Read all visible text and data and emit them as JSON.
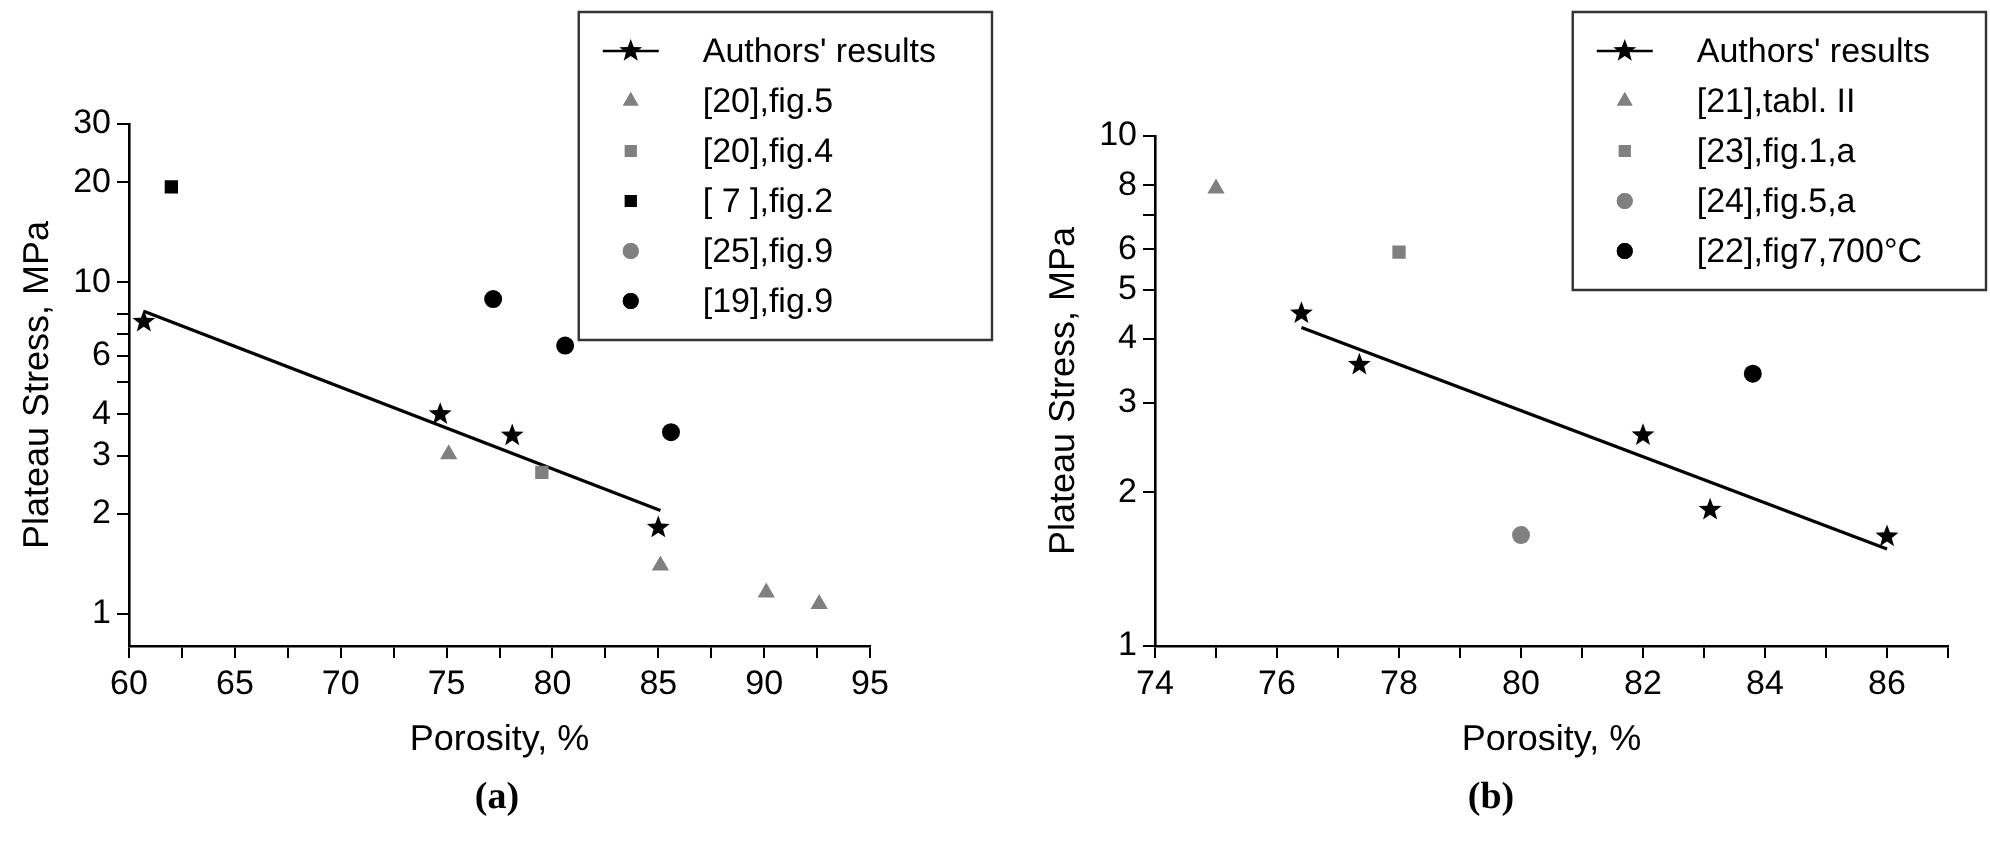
{
  "chart_data": [
    {
      "type": "scatter",
      "xlabel": "Porosity, %",
      "ylabel": "Plateau Stress, MPa",
      "log": "y",
      "legend": "top right",
      "annotations": [
        "(a)"
      ],
      "xlim": [
        60,
        95
      ],
      "xticks": [
        60,
        {
          "value": 62.5,
          "label": null
        },
        65,
        {
          "value": 67.5,
          "label": null
        },
        70,
        {
          "value": 72.5,
          "label": null
        },
        75,
        {
          "value": 77.5,
          "label": null
        },
        80,
        {
          "value": 82.5,
          "label": null
        },
        85,
        {
          "value": 87.5,
          "label": null
        },
        90,
        {
          "value": 92.5,
          "label": null
        },
        95
      ],
      "ylim": [
        0.8,
        30
      ],
      "yticks": [
        1,
        2,
        3,
        4,
        {
          "value": 5,
          "label": null
        },
        6,
        {
          "value": 7,
          "label": null
        },
        {
          "value": 8,
          "label": null
        },
        10,
        20,
        30
      ],
      "series": [
        {
          "name": "Authors' results",
          "color": "#000000",
          "marker": "star",
          "x": [
            60.7,
            74.7,
            78.1,
            85
          ],
          "values": [
            7.6,
            4.0,
            3.45,
            1.82
          ]
        },
        {
          "name": "[20],fig.5",
          "color": "#808080",
          "marker": "triangle",
          "x": [
            75.1,
            85.1,
            90.1,
            92.6
          ],
          "values": [
            3.03,
            1.4,
            1.16,
            1.07
          ]
        },
        {
          "name": "[20],fig.4",
          "color": "#808080",
          "marker": "square",
          "x": [
            79.5
          ],
          "values": [
            2.67
          ]
        },
        {
          "name": "[ 7 ],fig.2",
          "color": "#000000",
          "marker": "square",
          "x": [
            62
          ],
          "values": [
            19.4
          ]
        },
        {
          "name": "[25],fig.9",
          "color": "#808080",
          "marker": "circle"
        },
        {
          "name": "[19],fig.9",
          "color": "#000000",
          "marker": "circle",
          "x": [
            77.2,
            80.6,
            85.6
          ],
          "values": [
            8.9,
            6.44,
            3.53
          ]
        },
        {
          "type": "line",
          "color": "#000000",
          "marker": "none",
          "x": [
            60.7,
            85.1
          ],
          "values": [
            8.17,
            2.05
          ]
        }
      ]
    },
    {
      "type": "scatter",
      "xlabel": "Porosity, %",
      "ylabel": "Plateau Stress, MPa",
      "log": "y",
      "legend": "top right",
      "annotations": [
        "(b)"
      ],
      "xlim": [
        74,
        87
      ],
      "xticks": [
        74,
        {
          "value": 75,
          "label": null
        },
        76,
        {
          "value": 77,
          "label": null
        },
        78,
        {
          "value": 79,
          "label": null
        },
        80,
        {
          "value": 81,
          "label": null
        },
        82,
        {
          "value": 83,
          "label": null
        },
        84,
        {
          "value": 85,
          "label": null
        },
        86,
        {
          "value": 87,
          "label": null
        }
      ],
      "ylim": [
        1,
        10
      ],
      "yticks": [
        1,
        2,
        3,
        4,
        5,
        6,
        {
          "value": 7,
          "label": null
        },
        8,
        10
      ],
      "series": [
        {
          "name": "Authors' results",
          "color": "#000000",
          "marker": "star",
          "x": [
            76.4,
            77.35,
            82,
            83.1,
            86
          ],
          "values": [
            4.49,
            3.56,
            2.59,
            1.85,
            1.64
          ]
        },
        {
          "name": "[21],tabl. II",
          "color": "#808080",
          "marker": "triangle",
          "x": [
            75
          ],
          "values": [
            7.89
          ]
        },
        {
          "name": "[23],fig.1,a",
          "color": "#808080",
          "marker": "square",
          "x": [
            78
          ],
          "values": [
            5.92
          ]
        },
        {
          "name": "[24],fig.5,a",
          "color": "#808080",
          "marker": "circle",
          "x": [
            80
          ],
          "values": [
            1.65
          ]
        },
        {
          "name": "[22],fig7,700°C",
          "color": "#000000",
          "marker": "circle",
          "x": [
            83.8
          ],
          "values": [
            3.42
          ]
        },
        {
          "type": "line",
          "color": "#000000",
          "marker": "none",
          "x": [
            76.4,
            86
          ],
          "values": [
            4.21,
            1.55
          ]
        }
      ]
    }
  ]
}
